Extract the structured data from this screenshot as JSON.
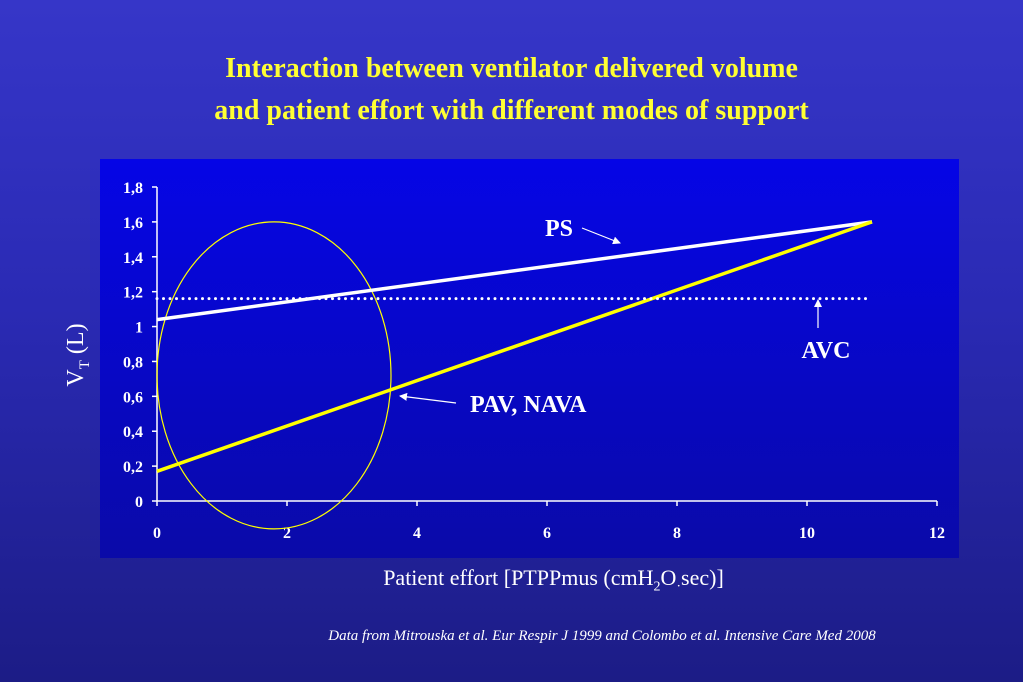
{
  "title": {
    "line1": "Interaction between ventilator delivered volume",
    "line2": "and patient effort with different modes of support"
  },
  "chart_data": {
    "type": "line",
    "xlabel_parts": [
      "Patient effort [PTPPmus (cmH",
      "2",
      "O",
      "·",
      "sec)]"
    ],
    "ylabel_parts": [
      "V",
      "T",
      " (L)"
    ],
    "xlim": [
      0,
      12
    ],
    "ylim": [
      0,
      1.8
    ],
    "x_ticks": [
      "0",
      "2",
      "4",
      "6",
      "8",
      "10",
      "12"
    ],
    "y_ticks": [
      "0",
      "0,2",
      "0,4",
      "0,6",
      "0,8",
      "1",
      "1,2",
      "1,4",
      "1,6",
      "1,8"
    ],
    "grid": false,
    "series": [
      {
        "name": "PS",
        "color": "#ffffff",
        "style": "solid",
        "x": [
          0,
          11
        ],
        "y": [
          1.04,
          1.6
        ]
      },
      {
        "name": "PAV, NAVA",
        "color": "#ffff00",
        "style": "solid",
        "x": [
          0,
          11
        ],
        "y": [
          0.17,
          1.6
        ]
      },
      {
        "name": "AVC",
        "color": "#ffffff",
        "style": "dotted",
        "x": [
          0,
          11
        ],
        "y": [
          1.16,
          1.16
        ]
      }
    ],
    "annotations": [
      {
        "text": "PS",
        "color": "#ffffff"
      },
      {
        "text": "PAV, NAVA",
        "color": "#ffffff"
      },
      {
        "text": "AVC",
        "color": "#ffffff"
      }
    ],
    "highlight_ellipse": {
      "cx": 1.8,
      "cy": 0.72,
      "rx": 1.8,
      "ry": 0.88,
      "color": "#ffff00"
    },
    "plot_background": "#0a0ad8"
  },
  "footnote": "Data from Mitrouska et al. Eur Respir J 1999 and Colombo et al. Intensive Care Med 2008",
  "colors": {
    "title": "#ffff33",
    "text": "#ffffff"
  }
}
